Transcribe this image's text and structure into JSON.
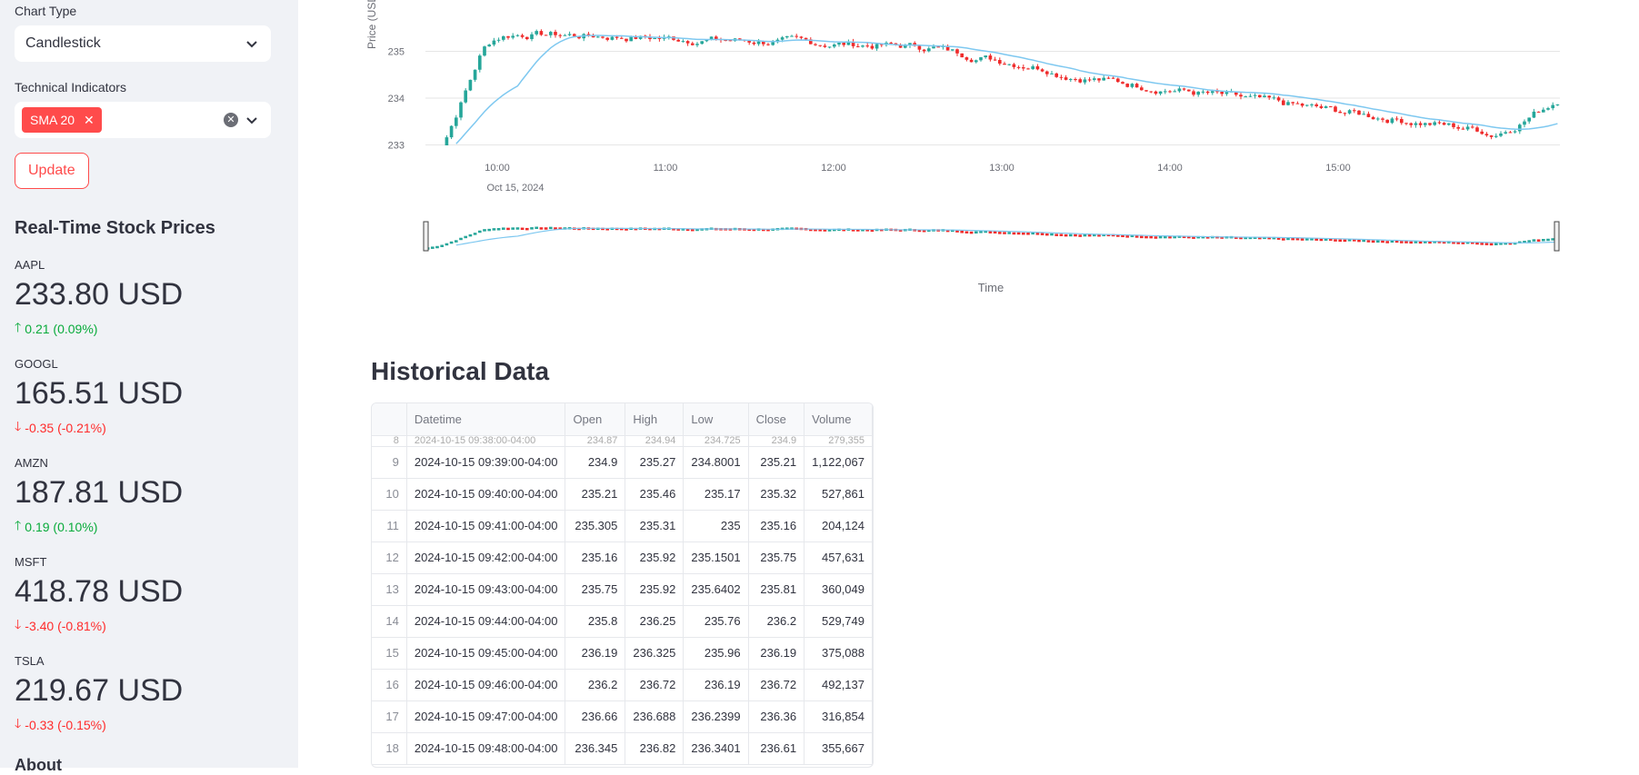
{
  "sidebar": {
    "chart_type_label": "Chart Type",
    "chart_type_value": "Candlestick",
    "indicators_label": "Technical Indicators",
    "indicators_selected": [
      "SMA 20"
    ],
    "update_button": "Update",
    "realtime_title": "Real-Time Stock Prices",
    "metrics": [
      {
        "symbol": "AAPL",
        "price": "233.80 USD",
        "delta": "0.21 (0.09%)",
        "direction": "up"
      },
      {
        "symbol": "GOOGL",
        "price": "165.51 USD",
        "delta": "-0.35 (-0.21%)",
        "direction": "down"
      },
      {
        "symbol": "AMZN",
        "price": "187.81 USD",
        "delta": "0.19 (0.10%)",
        "direction": "up"
      },
      {
        "symbol": "MSFT",
        "price": "418.78 USD",
        "delta": "-3.40 (-0.81%)",
        "direction": "down"
      },
      {
        "symbol": "TSLA",
        "price": "219.67 USD",
        "delta": "-0.33 (-0.15%)",
        "direction": "down"
      }
    ],
    "about_title": "About"
  },
  "chart_data": {
    "type": "candlestick",
    "ylabel": "Price (USD)",
    "xlabel": "Time",
    "date_label": "Oct 15, 2024",
    "y_ticks": [
      "233",
      "234",
      "235"
    ],
    "x_ticks": [
      "10:00",
      "11:00",
      "12:00",
      "13:00",
      "14:00",
      "15:00"
    ],
    "ylim_visible": [
      232.4,
      235.3
    ],
    "series": [
      {
        "name": "Candlestick"
      },
      {
        "name": "SMA 20"
      }
    ],
    "colors": {
      "increasing": "#26a69a",
      "decreasing": "#ef2b2b",
      "sma": "#7ec8f0"
    }
  },
  "historical": {
    "title": "Historical Data",
    "columns": [
      "",
      "Datetime",
      "Open",
      "High",
      "Low",
      "Close",
      "Volume"
    ],
    "partial_row": {
      "idx": "8",
      "datetime": "2024-10-15 09:38:00-04:00",
      "open": "234.87",
      "high": "234.94",
      "low": "234.725",
      "close": "234.9",
      "volume": "279,355"
    },
    "rows": [
      {
        "idx": "9",
        "datetime": "2024-10-15 09:39:00-04:00",
        "open": "234.9",
        "high": "235.27",
        "low": "234.8001",
        "close": "235.21",
        "volume": "1,122,067"
      },
      {
        "idx": "10",
        "datetime": "2024-10-15 09:40:00-04:00",
        "open": "235.21",
        "high": "235.46",
        "low": "235.17",
        "close": "235.32",
        "volume": "527,861"
      },
      {
        "idx": "11",
        "datetime": "2024-10-15 09:41:00-04:00",
        "open": "235.305",
        "high": "235.31",
        "low": "235",
        "close": "235.16",
        "volume": "204,124"
      },
      {
        "idx": "12",
        "datetime": "2024-10-15 09:42:00-04:00",
        "open": "235.16",
        "high": "235.92",
        "low": "235.1501",
        "close": "235.75",
        "volume": "457,631"
      },
      {
        "idx": "13",
        "datetime": "2024-10-15 09:43:00-04:00",
        "open": "235.75",
        "high": "235.92",
        "low": "235.6402",
        "close": "235.81",
        "volume": "360,049"
      },
      {
        "idx": "14",
        "datetime": "2024-10-15 09:44:00-04:00",
        "open": "235.8",
        "high": "236.25",
        "low": "235.76",
        "close": "236.2",
        "volume": "529,749"
      },
      {
        "idx": "15",
        "datetime": "2024-10-15 09:45:00-04:00",
        "open": "236.19",
        "high": "236.325",
        "low": "235.96",
        "close": "236.19",
        "volume": "375,088"
      },
      {
        "idx": "16",
        "datetime": "2024-10-15 09:46:00-04:00",
        "open": "236.2",
        "high": "236.72",
        "low": "236.19",
        "close": "236.72",
        "volume": "492,137"
      },
      {
        "idx": "17",
        "datetime": "2024-10-15 09:47:00-04:00",
        "open": "236.66",
        "high": "236.688",
        "low": "236.2399",
        "close": "236.36",
        "volume": "316,854"
      },
      {
        "idx": "18",
        "datetime": "2024-10-15 09:48:00-04:00",
        "open": "236.345",
        "high": "236.82",
        "low": "236.3401",
        "close": "236.61",
        "volume": "355,667"
      }
    ]
  }
}
